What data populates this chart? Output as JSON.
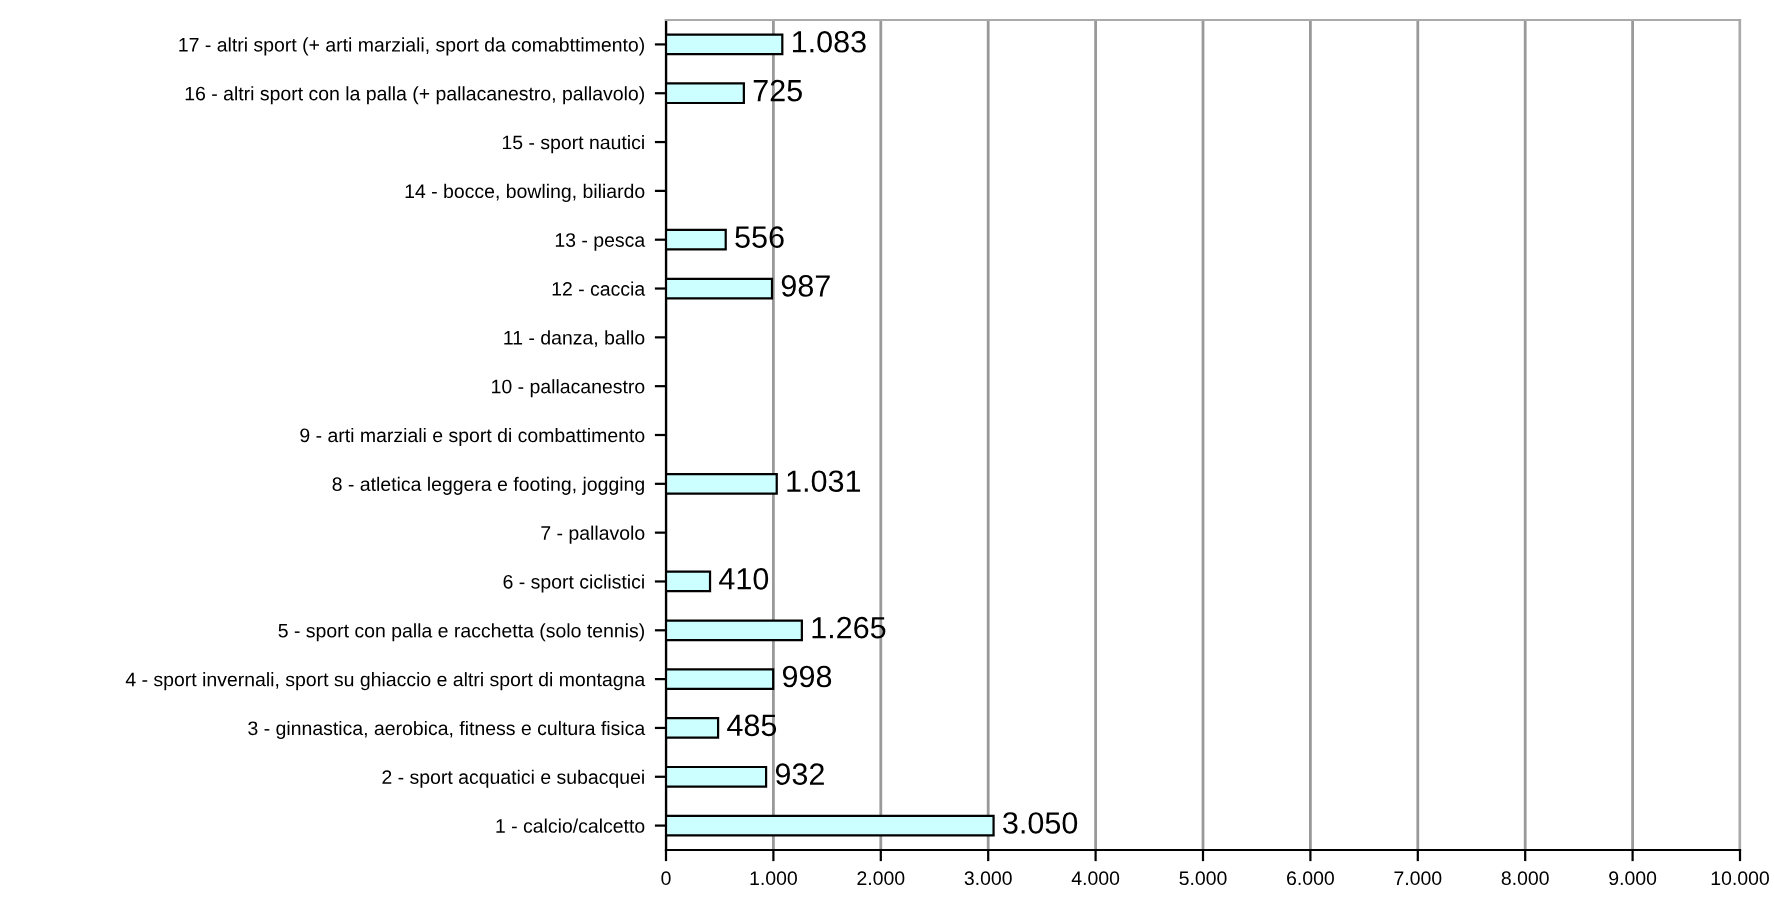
{
  "chart_data": {
    "type": "bar",
    "orientation": "horizontal",
    "categories": [
      "17 - altri sport (+ arti marziali, sport da comabttimento)",
      "16 - altri sport con la palla (+ pallacanestro, pallavolo)",
      "15 - sport nautici",
      "14 - bocce, bowling, biliardo",
      "13 - pesca",
      "12 - caccia",
      "11 - danza, ballo",
      "10 - pallacanestro",
      "9 - arti marziali e sport di combattimento",
      "8 - atletica leggera e footing, jogging",
      "7 - pallavolo",
      "6 - sport ciclistici",
      "5 - sport con palla e racchetta (solo tennis)",
      "4 - sport invernali, sport su ghiaccio e altri sport di montagna",
      "3 - ginnastica, aerobica, fitness e cultura fisica",
      "2 - sport acquatici e subacquei",
      "1 - calcio/calcetto"
    ],
    "values": [
      1083,
      725,
      null,
      null,
      556,
      987,
      null,
      null,
      null,
      1031,
      null,
      410,
      1265,
      998,
      485,
      932,
      3050
    ],
    "value_labels": [
      "1.083",
      "725",
      null,
      null,
      "556",
      "987",
      null,
      null,
      null,
      "1.031",
      null,
      "410",
      "1.265",
      "998",
      "485",
      "932",
      "3.050"
    ],
    "color": "#ccffff",
    "xlim": [
      0,
      10000
    ],
    "xticks": [
      0,
      {
        "value": 1000,
        "label": "1.000"
      },
      {
        "value": 2000,
        "label": "2.000"
      },
      {
        "value": 3000,
        "label": "3.000"
      },
      {
        "value": 4000,
        "label": "4.000"
      },
      {
        "value": 5000,
        "label": "5.000"
      },
      {
        "value": 6000,
        "label": "6.000"
      },
      {
        "value": 7000,
        "label": "7.000"
      },
      {
        "value": 8000,
        "label": "8.000"
      },
      {
        "value": 9000,
        "label": "9.000"
      },
      {
        "value": 10000,
        "label": "10.000"
      }
    ],
    "grid": "x"
  }
}
